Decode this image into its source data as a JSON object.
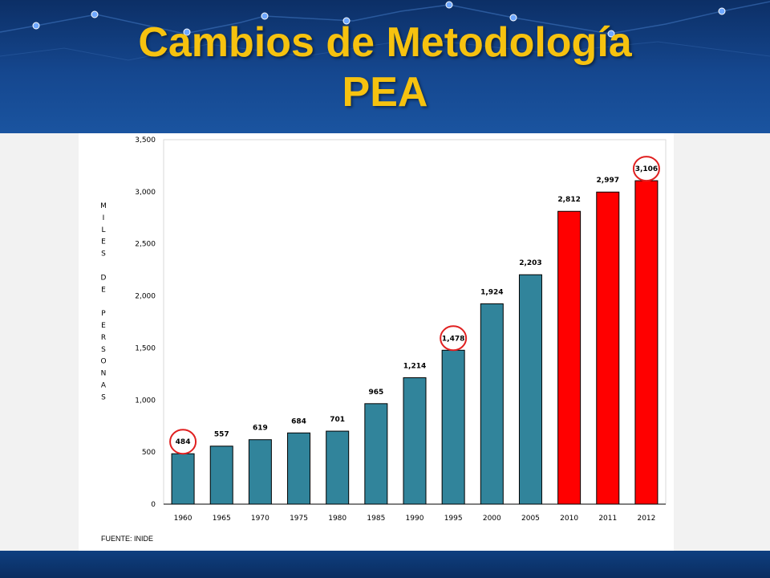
{
  "slide": {
    "title_line1": "Cambios de Metodología",
    "title_line2": "PEA",
    "source": "FUENTE: INIDE"
  },
  "colors": {
    "header_bg": "#15478f",
    "title": "#f6c20f",
    "bar_teal": "#31849b",
    "bar_red": "#ff0000",
    "highlight_circle": "#e02020"
  },
  "chart_data": {
    "type": "bar",
    "categories": [
      "1960",
      "1965",
      "1970",
      "1975",
      "1980",
      "1985",
      "1990",
      "1995",
      "2000",
      "2005",
      "2010",
      "2011",
      "2012"
    ],
    "values": [
      484,
      557,
      619,
      684,
      701,
      965,
      1214,
      1478,
      1924,
      2203,
      2812,
      2997,
      3106
    ],
    "data_labels": [
      "484",
      "557",
      "619",
      "684",
      "701",
      "965",
      "1,214",
      "1,478",
      "1,924",
      "2,203",
      "2,812",
      "2,997",
      "3,106"
    ],
    "bar_colors": [
      "#31849b",
      "#31849b",
      "#31849b",
      "#31849b",
      "#31849b",
      "#31849b",
      "#31849b",
      "#31849b",
      "#31849b",
      "#31849b",
      "#ff0000",
      "#ff0000",
      "#ff0000"
    ],
    "highlighted": [
      "1960",
      "1995",
      "2012"
    ],
    "ylim": [
      0,
      3500
    ],
    "yticks": [
      0,
      500,
      1000,
      1500,
      2000,
      2500,
      3000,
      3500
    ],
    "ytick_labels": [
      "0",
      "500",
      "1,000",
      "1,500",
      "2,000",
      "2,500",
      "3,000",
      "3,500"
    ],
    "ylabel": "MILES DE PERSONAS",
    "xlabel": "",
    "title": "",
    "grid": false,
    "legend": false
  }
}
